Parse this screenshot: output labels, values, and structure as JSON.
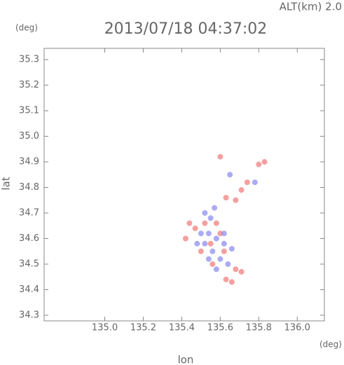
{
  "chart_data": {
    "type": "scatter",
    "title": "2013/07/18 04:37:02",
    "subtitle": "ALT(km) 2.0",
    "x_label": "lon",
    "y_label": "lat",
    "x_unit": "(deg)",
    "y_unit": "(deg)",
    "xlim": [
      134.685,
      136.141
    ],
    "ylim": [
      34.278,
      35.344
    ],
    "xticks": [
      {
        "value": 135.0,
        "label": "135.0"
      },
      135.2,
      135.4,
      135.6,
      135.8,
      {
        "value": 136.0,
        "label": "136.0"
      }
    ],
    "yticks": [
      34.3,
      34.4,
      34.5,
      34.6,
      34.7,
      34.8,
      34.9,
      {
        "value": 35.0,
        "label": "35.0"
      },
      35.1,
      35.2,
      35.3
    ],
    "series": [
      {
        "color": "#f07878",
        "x": [
          135.83,
          135.8,
          135.74,
          135.71,
          135.68,
          135.63,
          135.44,
          135.47,
          135.52,
          135.58,
          135.6,
          135.55,
          135.5,
          135.62,
          135.56,
          135.68,
          135.71,
          135.66,
          135.63,
          135.6,
          135.42
        ],
        "y": [
          34.9,
          34.89,
          34.82,
          34.79,
          34.75,
          34.76,
          34.66,
          34.64,
          34.66,
          34.66,
          34.62,
          34.58,
          34.55,
          34.55,
          34.5,
          34.48,
          34.47,
          34.43,
          34.44,
          34.92,
          34.6
        ]
      },
      {
        "color": "#8888f0",
        "x": [
          135.52,
          135.55,
          135.5,
          135.54,
          135.58,
          135.52,
          135.56,
          135.6,
          135.58,
          135.64,
          135.62,
          135.66,
          135.54,
          135.57,
          135.48,
          135.62,
          135.78,
          135.65
        ],
        "y": [
          34.7,
          34.68,
          34.62,
          34.62,
          34.6,
          34.58,
          34.55,
          34.52,
          34.48,
          34.5,
          34.62,
          34.56,
          34.52,
          34.72,
          34.58,
          34.58,
          34.82,
          34.85
        ]
      }
    ]
  }
}
